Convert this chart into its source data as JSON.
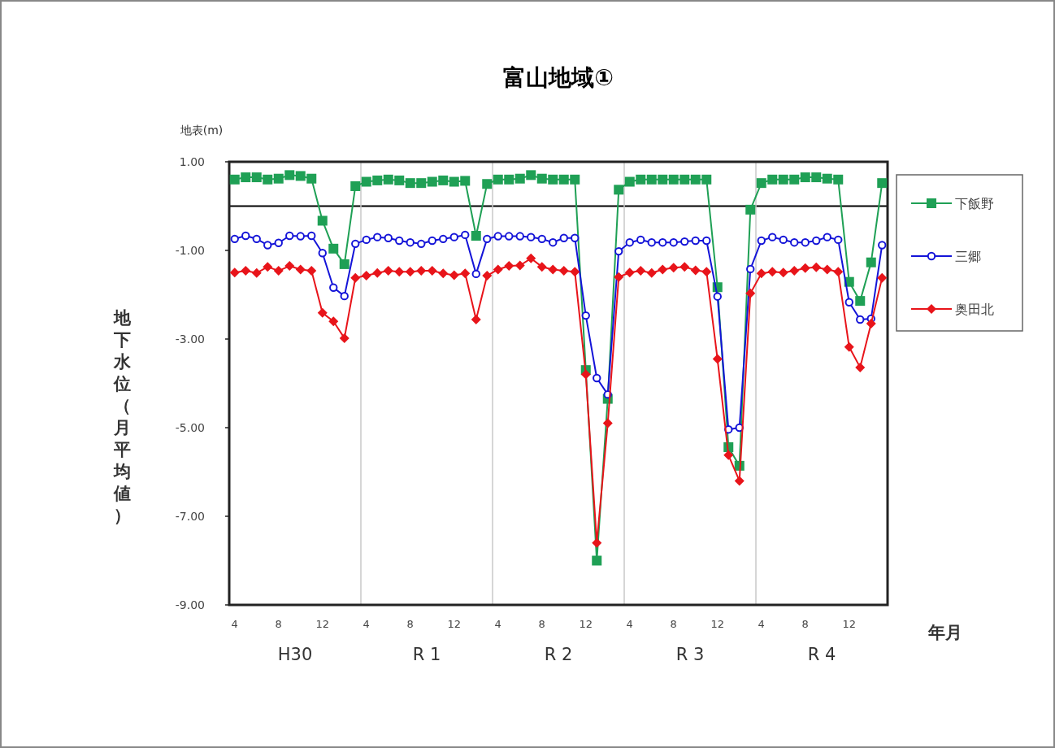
{
  "chart_data": {
    "type": "line",
    "title": "富山地域①",
    "xlabel": "年月",
    "ylabel": "地下水位（月平均値）",
    "annotations": [
      "地表(m)",
      "H30",
      "R 1",
      "R 2",
      "R 3",
      "R 4"
    ],
    "categories": [
      "4",
      null,
      null,
      null,
      "8",
      null,
      null,
      null,
      "12",
      null,
      null,
      null,
      "4",
      null,
      null,
      null,
      "8",
      null,
      null,
      null,
      "12",
      null,
      null,
      null,
      "4",
      null,
      null,
      null,
      "8",
      null,
      null,
      null,
      "12",
      null,
      null,
      null,
      "4",
      null,
      null,
      null,
      "8",
      null,
      null,
      null,
      "12",
      null,
      null,
      null,
      "4",
      null,
      null,
      null,
      "8",
      null,
      null,
      null,
      "12",
      null,
      null,
      null
    ],
    "series": [
      {
        "name": "下飯野",
        "color": "#1fa055",
        "marker": "square",
        "values": [
          0.6,
          0.65,
          0.65,
          0.6,
          0.62,
          0.7,
          0.68,
          0.62,
          -0.33,
          -0.96,
          -1.31,
          0.45,
          0.55,
          0.58,
          0.6,
          0.58,
          0.52,
          0.52,
          0.55,
          0.58,
          0.55,
          0.57,
          -0.67,
          0.5,
          0.6,
          0.6,
          0.62,
          0.7,
          0.62,
          0.6,
          0.6,
          0.6,
          -3.7,
          -8.0,
          -4.35,
          0.37,
          0.55,
          0.6,
          0.6,
          0.6,
          0.6,
          0.6,
          0.6,
          0.6,
          -1.83,
          -5.44,
          -5.86,
          -0.08,
          0.52,
          0.6,
          0.6,
          0.6,
          0.65,
          0.65,
          0.62,
          0.6,
          -1.71,
          -2.14,
          -1.27,
          0.52
        ]
      },
      {
        "name": "三郷",
        "color": "#1414d8",
        "marker": "circle",
        "values": [
          -0.74,
          -0.67,
          -0.74,
          -0.88,
          -0.83,
          -0.67,
          -0.68,
          -0.67,
          -1.06,
          -1.84,
          -2.03,
          -0.85,
          -0.76,
          -0.7,
          -0.72,
          -0.78,
          -0.82,
          -0.85,
          -0.78,
          -0.74,
          -0.7,
          -0.65,
          -1.53,
          -0.74,
          -0.68,
          -0.68,
          -0.68,
          -0.7,
          -0.74,
          -0.82,
          -0.72,
          -0.72,
          -2.47,
          -3.88,
          -4.25,
          -1.02,
          -0.82,
          -0.76,
          -0.82,
          -0.82,
          -0.82,
          -0.8,
          -0.78,
          -0.78,
          -2.04,
          -5.04,
          -5.0,
          -1.42,
          -0.78,
          -0.7,
          -0.76,
          -0.82,
          -0.82,
          -0.78,
          -0.7,
          -0.76,
          -2.17,
          -2.56,
          -2.54,
          -0.88
        ]
      },
      {
        "name": "奥田北",
        "color": "#e8141a",
        "marker": "diamond",
        "values": [
          -1.5,
          -1.46,
          -1.51,
          -1.37,
          -1.46,
          -1.35,
          -1.43,
          -1.46,
          -2.41,
          -2.6,
          -2.98,
          -1.62,
          -1.57,
          -1.51,
          -1.46,
          -1.48,
          -1.48,
          -1.46,
          -1.46,
          -1.52,
          -1.56,
          -1.52,
          -2.56,
          -1.57,
          -1.43,
          -1.35,
          -1.34,
          -1.18,
          -1.37,
          -1.43,
          -1.46,
          -1.48,
          -3.8,
          -7.6,
          -4.9,
          -1.6,
          -1.5,
          -1.46,
          -1.51,
          -1.43,
          -1.39,
          -1.37,
          -1.45,
          -1.48,
          -3.45,
          -5.62,
          -6.2,
          -1.97,
          -1.52,
          -1.48,
          -1.5,
          -1.46,
          -1.4,
          -1.38,
          -1.43,
          -1.48,
          -3.18,
          -3.64,
          -2.65,
          -1.62
        ]
      }
    ],
    "ylim": [
      -9,
      1
    ],
    "yticks": [
      {
        "value": 1,
        "label": "1.00"
      },
      {
        "value": -1,
        "label": "-1.00"
      },
      {
        "value": -3,
        "label": "-3.00"
      },
      {
        "value": -5,
        "label": "-5.00"
      },
      {
        "value": -7,
        "label": "-7.00"
      },
      {
        "value": -9,
        "label": "-9.00"
      }
    ],
    "ref_lines": [
      {
        "axis": "y",
        "value": 0,
        "color": "#000000"
      }
    ],
    "grid": false,
    "legend": "top right"
  }
}
